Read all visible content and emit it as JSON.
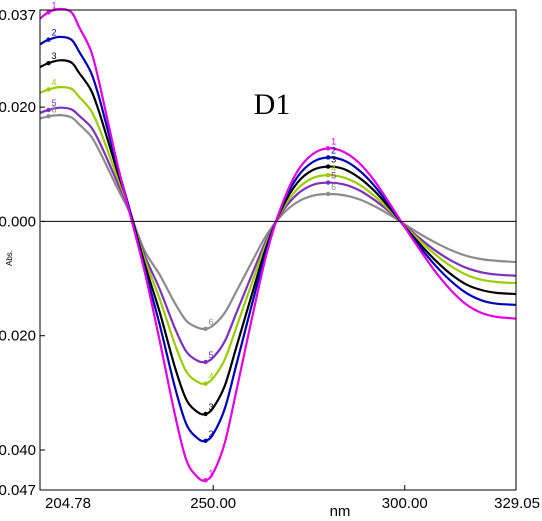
{
  "chart_data": {
    "type": "line",
    "title": "D1",
    "xlabel": "nm",
    "ylabel": "Abs.",
    "xlim": [
      204.78,
      329.05
    ],
    "ylim": [
      -0.047,
      0.037
    ],
    "x_ticks": [
      "204.78",
      "250.00",
      "300.00",
      "329.05"
    ],
    "y_ticks": [
      "0.037",
      "0.020",
      "0.000",
      "-0.020",
      "-0.040",
      "-0.047"
    ],
    "grid": false,
    "x": [
      204.78,
      207,
      210,
      213,
      215,
      218,
      220,
      222,
      225,
      228,
      232,
      236,
      240,
      243,
      246,
      248,
      250,
      253,
      256,
      260,
      264,
      268,
      272,
      276,
      280,
      284,
      288,
      292,
      296,
      300,
      304,
      308,
      312,
      316,
      320,
      324,
      329.05
    ],
    "series": [
      {
        "name": "1",
        "color": "#e400e4",
        "values": [
          0.0355,
          0.0366,
          0.0372,
          0.0366,
          0.034,
          0.03,
          0.025,
          0.019,
          0.01,
          0.002,
          -0.0085,
          -0.0208,
          -0.0338,
          -0.0418,
          -0.0448,
          -0.0453,
          -0.044,
          -0.0388,
          -0.0298,
          -0.0173,
          -0.0055,
          0.003,
          0.0088,
          0.0118,
          0.0128,
          0.0122,
          0.0103,
          0.0072,
          0.0032,
          -0.001,
          -0.005,
          -0.0088,
          -0.012,
          -0.0145,
          -0.016,
          -0.0167,
          -0.017
        ]
      },
      {
        "name": "2",
        "color": "#0000b8",
        "values": [
          0.031,
          0.0318,
          0.0323,
          0.0318,
          0.0297,
          0.0262,
          0.0222,
          0.0172,
          0.0096,
          0.0025,
          -0.008,
          -0.018,
          -0.029,
          -0.0355,
          -0.038,
          -0.0384,
          -0.0372,
          -0.0328,
          -0.0252,
          -0.0148,
          -0.0048,
          0.0028,
          0.0078,
          0.0104,
          0.0112,
          0.0107,
          0.009,
          0.0063,
          0.0028,
          -0.001,
          -0.0045,
          -0.0077,
          -0.0104,
          -0.0125,
          -0.0138,
          -0.0144,
          -0.0146
        ]
      },
      {
        "name": "3",
        "color": "#000000",
        "values": [
          0.027,
          0.0277,
          0.0282,
          0.0278,
          0.026,
          0.0231,
          0.0196,
          0.0153,
          0.0087,
          0.0025,
          -0.0072,
          -0.0158,
          -0.0255,
          -0.0312,
          -0.0334,
          -0.0337,
          -0.0326,
          -0.0288,
          -0.0221,
          -0.013,
          -0.0042,
          0.0024,
          0.0068,
          0.009,
          0.0096,
          0.0092,
          0.0077,
          0.0054,
          0.0024,
          -0.0009,
          -0.004,
          -0.0068,
          -0.0092,
          -0.011,
          -0.012,
          -0.0125,
          -0.0127
        ]
      },
      {
        "name": "4",
        "color": "#9acd00",
        "values": [
          0.0225,
          0.0231,
          0.0235,
          0.0232,
          0.0218,
          0.0195,
          0.0167,
          0.0132,
          0.0077,
          0.0024,
          -0.0064,
          -0.0135,
          -0.0215,
          -0.0263,
          -0.0281,
          -0.0284,
          -0.0274,
          -0.0242,
          -0.0186,
          -0.011,
          -0.0036,
          0.002,
          0.0057,
          0.0076,
          0.0081,
          0.0077,
          0.0065,
          0.0045,
          0.002,
          -0.0008,
          -0.0034,
          -0.0058,
          -0.0078,
          -0.0093,
          -0.0102,
          -0.0106,
          -0.0108
        ]
      },
      {
        "name": "5",
        "color": "#7f2fbf",
        "values": [
          0.019,
          0.0195,
          0.0199,
          0.0196,
          0.0185,
          0.0166,
          0.0143,
          0.0114,
          0.0068,
          0.0022,
          -0.0058,
          -0.0118,
          -0.0187,
          -0.0228,
          -0.0244,
          -0.0246,
          -0.0238,
          -0.021,
          -0.0161,
          -0.0095,
          -0.0031,
          0.0017,
          0.0048,
          0.0064,
          0.0068,
          0.0065,
          0.0055,
          0.0038,
          0.0017,
          -0.0007,
          -0.003,
          -0.0051,
          -0.0068,
          -0.0081,
          -0.0089,
          -0.0093,
          -0.0095
        ]
      },
      {
        "name": "6",
        "color": "#8c8c8c",
        "values": [
          0.018,
          0.0184,
          0.0186,
          0.0182,
          0.017,
          0.015,
          0.0127,
          0.01,
          0.0058,
          0.0018,
          -0.005,
          -0.0093,
          -0.0143,
          -0.0174,
          -0.0186,
          -0.0188,
          -0.0182,
          -0.016,
          -0.0123,
          -0.0072,
          -0.0023,
          0.0012,
          0.0034,
          0.0045,
          0.0048,
          0.0046,
          0.0039,
          0.0027,
          0.0012,
          -0.0005,
          -0.0022,
          -0.0037,
          -0.005,
          -0.006,
          -0.0066,
          -0.0069,
          -0.0071
        ]
      }
    ]
  }
}
